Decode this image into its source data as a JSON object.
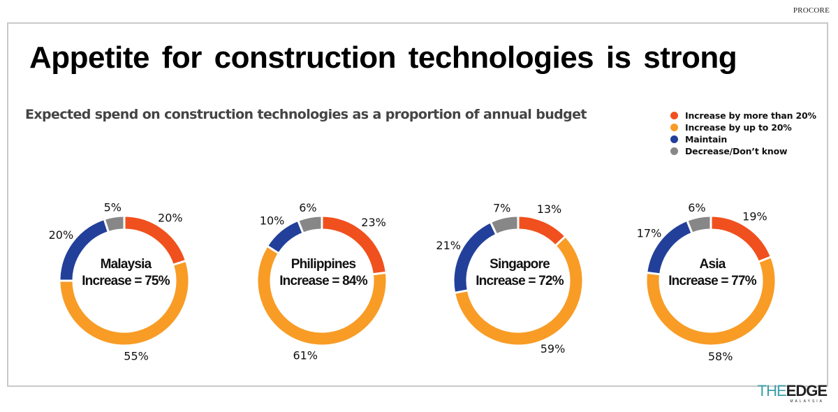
{
  "source_label": "PROCORE",
  "header": {
    "title": "Appetite for construction technologies is strong",
    "subtitle": "Expected spend on construction technologies as a proportion of annual budget"
  },
  "legend": [
    {
      "label": "Increase by more than 20%",
      "color": "#f0501e"
    },
    {
      "label": "Increase by up to 20%",
      "color": "#f89c26"
    },
    {
      "label": "Maintain",
      "color": "#22409a"
    },
    {
      "label": "Decrease/Don’t know",
      "color": "#878787"
    }
  ],
  "logo": {
    "the": "THE",
    "edge": "EDGE",
    "sub": "MALAYSIA"
  },
  "chart_data": [
    {
      "type": "pie",
      "variant": "donut",
      "title": "Malaysia",
      "center_label": "Increase = 75%",
      "categories": [
        "Increase by more than 20%",
        "Increase by up to 20%",
        "Maintain",
        "Decrease/Don't know"
      ],
      "values": [
        20,
        55,
        20,
        5
      ],
      "labels": [
        "20%",
        "55%",
        "20%",
        "5%"
      ]
    },
    {
      "type": "pie",
      "variant": "donut",
      "title": "Philippines",
      "center_label": "Increase = 84%",
      "categories": [
        "Increase by more than 20%",
        "Increase by up to 20%",
        "Maintain",
        "Decrease/Don't know"
      ],
      "values": [
        23,
        61,
        10,
        6
      ],
      "labels": [
        "23%",
        "61%",
        "10%",
        "6%"
      ]
    },
    {
      "type": "pie",
      "variant": "donut",
      "title": "Singapore",
      "center_label": "Increase = 72%",
      "categories": [
        "Increase by more than 20%",
        "Increase by up to 20%",
        "Maintain",
        "Decrease/Don't know"
      ],
      "values": [
        13,
        59,
        21,
        7
      ],
      "labels": [
        "13%",
        "59%",
        "21%",
        "7%"
      ]
    },
    {
      "type": "pie",
      "variant": "donut",
      "title": "Asia",
      "center_label": "Increase = 77%",
      "categories": [
        "Increase by more than 20%",
        "Increase by up to 20%",
        "Maintain",
        "Decrease/Don't know"
      ],
      "values": [
        19,
        58,
        17,
        6
      ],
      "labels": [
        "19%",
        "58%",
        "17%",
        "6%"
      ]
    }
  ]
}
